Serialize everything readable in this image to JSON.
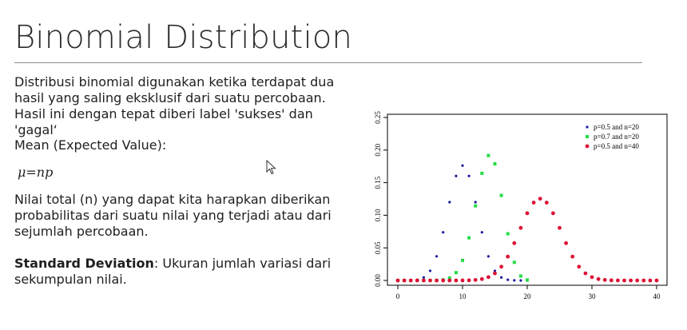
{
  "slide": {
    "title": "Binomial Distribution",
    "paragraph1": "Distribusi binomial digunakan ketika terdapat dua hasil yang saling eksklusif dari suatu percobaan. Hasil ini dengan tepat diberi label 'sukses' dan 'gagal‘",
    "mean_label": "Mean (Expected Value):",
    "mean_formula": "μ=np",
    "paragraph2": "Nilai total (n) yang dapat kita harapkan diberikan probabilitas dari suatu nilai yang terjadi atau dari sejumlah percobaan.",
    "sd_term": "Standard Deviation",
    "sd_text": ": Ukuran jumlah variasi dari sekumpulan nilai."
  },
  "icons": {
    "cursor": "mouse-pointer-icon"
  },
  "chart_data": {
    "type": "scatter",
    "xlim": [
      0,
      40
    ],
    "ylim": [
      0,
      0.25
    ],
    "x_ticks": [
      0,
      10,
      20,
      30,
      40
    ],
    "y_ticks": [
      "0.00",
      "0.05",
      "0.10",
      "0.15",
      "0.20",
      "0.25"
    ],
    "legend_position": "top-right",
    "series": [
      {
        "name": "p=0.5 and n=20",
        "color": "#1a1aa0",
        "x": [
          0,
          1,
          2,
          3,
          4,
          5,
          6,
          7,
          8,
          9,
          10,
          11,
          12,
          13,
          14,
          15,
          16,
          17,
          18,
          19,
          20
        ],
        "y": [
          0.0,
          0.0,
          0.0002,
          0.0011,
          0.0046,
          0.0148,
          0.037,
          0.0739,
          0.1201,
          0.1602,
          0.1762,
          0.1602,
          0.1201,
          0.0739,
          0.037,
          0.0148,
          0.0046,
          0.0011,
          0.0002,
          0.0,
          0.0
        ]
      },
      {
        "name": "p=0.7 and n=20",
        "color": "#22dd44",
        "x": [
          0,
          1,
          2,
          3,
          4,
          5,
          6,
          7,
          8,
          9,
          10,
          11,
          12,
          13,
          14,
          15,
          16,
          17,
          18,
          19,
          20
        ],
        "y": [
          0.0,
          0.0,
          0.0,
          0.0,
          0.0,
          0.0,
          0.0002,
          0.001,
          0.0039,
          0.012,
          0.0308,
          0.0654,
          0.1144,
          0.1643,
          0.1916,
          0.1789,
          0.1304,
          0.0716,
          0.0278,
          0.0068,
          0.0008
        ]
      },
      {
        "name": "p=0.5 and n=40",
        "color": "#dd1133",
        "x": [
          0,
          1,
          2,
          3,
          4,
          5,
          6,
          7,
          8,
          9,
          10,
          11,
          12,
          13,
          14,
          15,
          16,
          17,
          18,
          19,
          20,
          21,
          22,
          23,
          24,
          25,
          26,
          27,
          28,
          29,
          30,
          31,
          32,
          33,
          34,
          35,
          36,
          37,
          38,
          39,
          40
        ],
        "y": [
          0,
          0,
          0,
          0,
          0,
          0,
          0,
          0,
          0,
          0,
          0.0001,
          0.0002,
          0.0008,
          0.0021,
          0.0051,
          0.0109,
          0.0211,
          0.0366,
          0.0572,
          0.0807,
          0.1031,
          0.1194,
          0.1254,
          0.1194,
          0.1031,
          0.0807,
          0.0572,
          0.0366,
          0.0211,
          0.0109,
          0.0051,
          0.0021,
          0.0008,
          0.0002,
          0.0001,
          0,
          0,
          0,
          0,
          0,
          0
        ]
      }
    ]
  }
}
